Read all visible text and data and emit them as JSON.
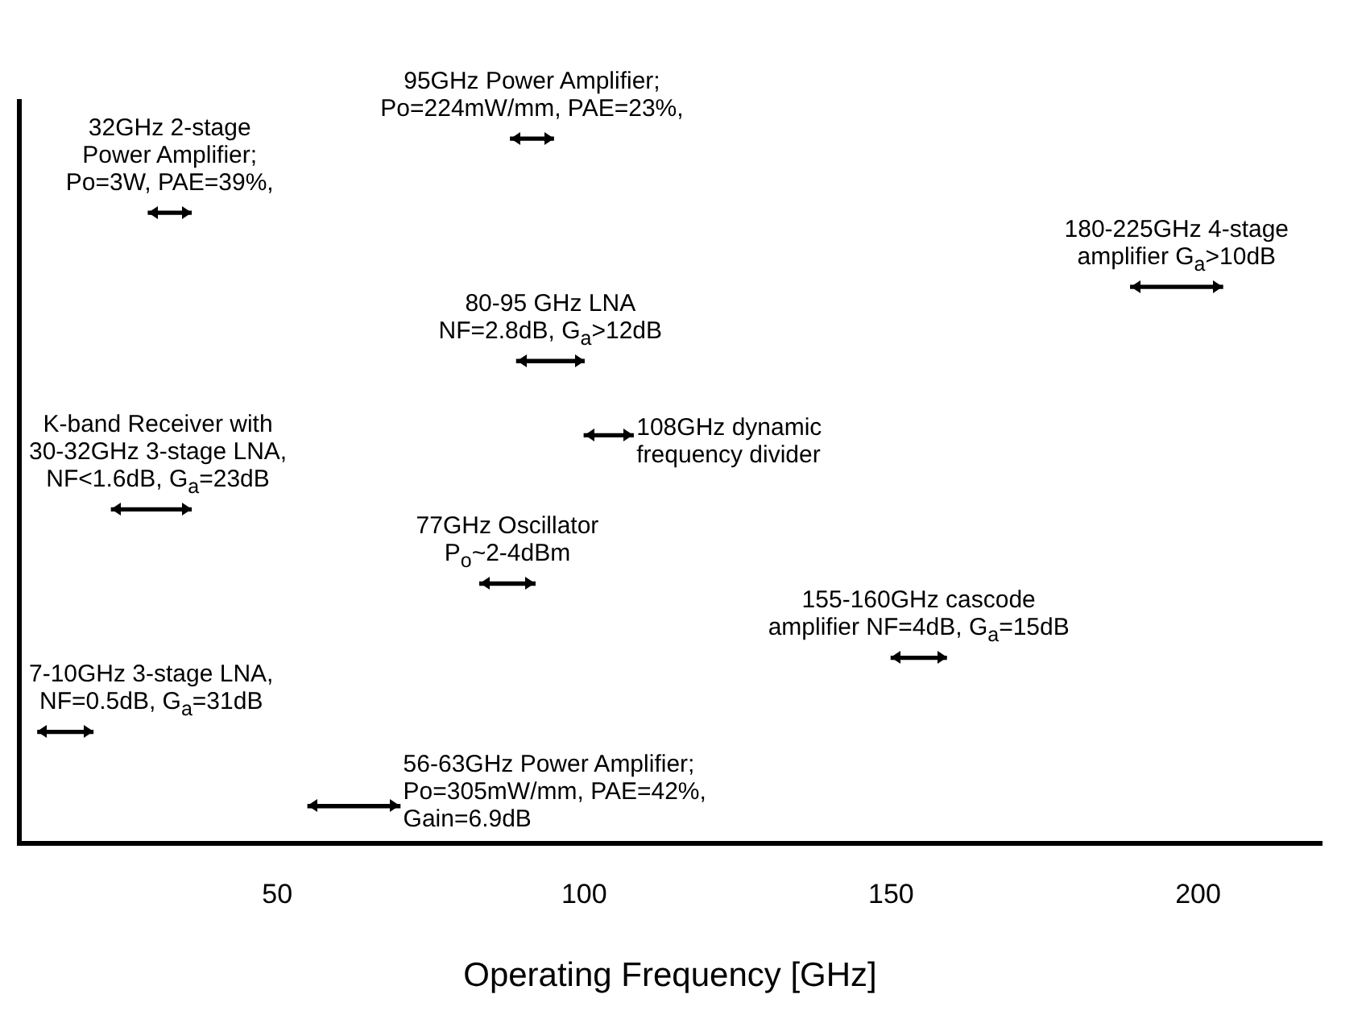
{
  "chart_data": {
    "type": "bar",
    "orientation": "horizontal",
    "xlabel": "Operating Frequency [GHz]",
    "categories": [
      null,
      null,
      null,
      null,
      null,
      null,
      null,
      null,
      null,
      null
    ],
    "base": [
      88,
      29,
      189,
      89,
      100,
      23,
      83,
      150,
      11,
      55
    ],
    "values": [
      7,
      7,
      15,
      11,
      8,
      13,
      9,
      9,
      9,
      15
    ],
    "color": "#000000",
    "xlim": [
      8,
      220
    ],
    "xticks": [
      50,
      100,
      150,
      200
    ],
    "grid": false,
    "tick_labels": "x",
    "annotations": [
      "95GHz Power Amplifier;\nPo=224mW/mm, PAE=23%,",
      "32GHz 2-stage\nPower Amplifier;\nPo=3W, PAE=39%,",
      "180-225GHz 4-stage\namplifier G$_{a}$>10dB",
      "80-95 GHz LNA\nNF=2.8dB, G$_{a}$>12dB",
      "108GHz dynamic\nfrequency divider",
      "K-band Receiver with\n30-32GHz 3-stage LNA,\nNF<1.6dB, G$_{a}$=23dB",
      "77GHz Oscillator\nP$_{o}$~2-4dBm",
      "155-160GHz cascode\namplifier NF=4dB, G$_{a}$=15dB",
      "7-10GHz 3-stage LNA,\nNF=0.5dB, G$_{a}$=31dB",
      "56-63GHz Power Amplifier;\nPo=305mW/mm, PAE=42%,\nGain=6.9dB"
    ]
  }
}
